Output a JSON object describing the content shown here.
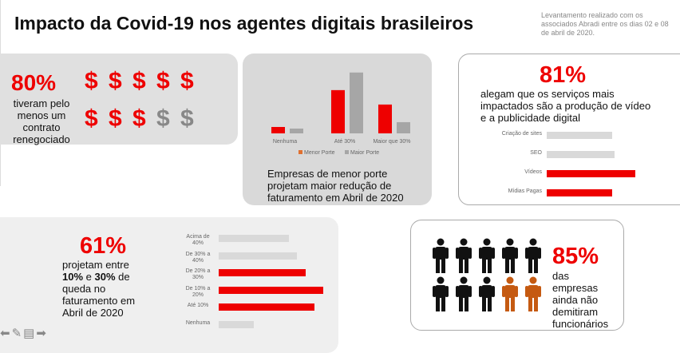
{
  "header": {
    "title": "Impacto da Covid-19 nos agentes digitais brasileiros",
    "note": "Levantamento realizado com os associados Abradi entre os dias 02 e 08 de abril de 2020."
  },
  "colors": {
    "red": "#ee0000",
    "gray": "#a6a6a6",
    "light_gray": "#d9d9d9",
    "orange": "#c55a11"
  },
  "panel1": {
    "percent": "80%",
    "text": "tiveram pelo menos um contrato renegociado",
    "dollar_symbol": "$",
    "dollars_red": 8,
    "dollars_total": 10
  },
  "panel2": {
    "caption": "Empresas de menor porte projetam maior redução de faturamento em Abril de 2020"
  },
  "panel3": {
    "percent": "81%",
    "text": "alegam que os serviços mais impactados são a produção de vídeo e a publicidade digital"
  },
  "panel4": {
    "percent": "61%",
    "text_a": "projetam entre",
    "bold1": "10%",
    "and": " e ",
    "bold2": "30%",
    "text_b": " de queda no faturamento em Abril de 2020"
  },
  "panel5": {
    "percent": "85%",
    "text": "das empresas ainda não demitiram funcionários",
    "people_total": 10,
    "people_highlighted": 2
  },
  "chart_data": [
    {
      "type": "bar",
      "title": "",
      "categories": [
        "Nenhuma",
        "Até 30%",
        "Maior que 30%"
      ],
      "series": [
        {
          "name": "Menor Porte",
          "values": [
            8,
            54,
            36
          ]
        },
        {
          "name": "Maior Porte",
          "values": [
            6,
            76,
            14
          ]
        }
      ],
      "legend": "bottom",
      "ylim": [
        0,
        80
      ]
    },
    {
      "type": "bar",
      "orientation": "horizontal",
      "categories": [
        "Criação de sites",
        "SEO",
        "Vídeos",
        "Mídias Pagas"
      ],
      "values": [
        82,
        85,
        111,
        82
      ],
      "highlight": [
        false,
        false,
        true,
        true
      ],
      "xlim": [
        0,
        120
      ]
    },
    {
      "type": "bar",
      "orientation": "horizontal",
      "categories": [
        "Acima de 40%",
        "De 30% a 40%",
        "De 20% a 30%",
        "De 10% a 20%",
        "Até 10%",
        "Nenhuma"
      ],
      "values": [
        88,
        98,
        109,
        131,
        120,
        44
      ],
      "highlight": [
        false,
        false,
        true,
        true,
        true,
        false
      ],
      "xlim": [
        0,
        135
      ]
    }
  ]
}
